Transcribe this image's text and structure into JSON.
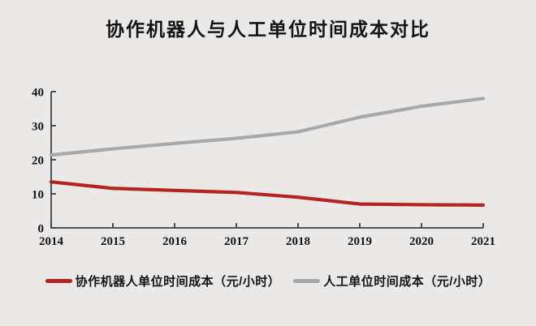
{
  "page": {
    "background": "#eae9e7",
    "text_color": "#141414"
  },
  "header": {
    "title": "协作机器人与人工单位时间成本对比"
  },
  "chart_data": {
    "type": "line",
    "title": "协作机器人与人工单位时间成本对比",
    "categories": [
      "2014",
      "2015",
      "2016",
      "2017",
      "2018",
      "2019",
      "2020",
      "2021"
    ],
    "series": [
      {
        "name": "协作机器人单位时间成本（元/小时）",
        "color": "#b42420",
        "values": [
          13.5,
          11.6,
          11.0,
          10.4,
          9.0,
          7.0,
          6.8,
          6.7
        ]
      },
      {
        "name": "人工单位时间成本（元/小时）",
        "color": "#a8a8a8",
        "values": [
          21.4,
          23.2,
          24.8,
          26.3,
          28.2,
          32.5,
          35.7,
          38.0
        ]
      }
    ],
    "xlabel": "",
    "ylabel": "",
    "ylim": [
      0,
      40
    ],
    "yticks": [
      0,
      10,
      20,
      30,
      40
    ],
    "grid": false,
    "legend_position": "bottom",
    "axis_color": "#3f3f3f"
  }
}
